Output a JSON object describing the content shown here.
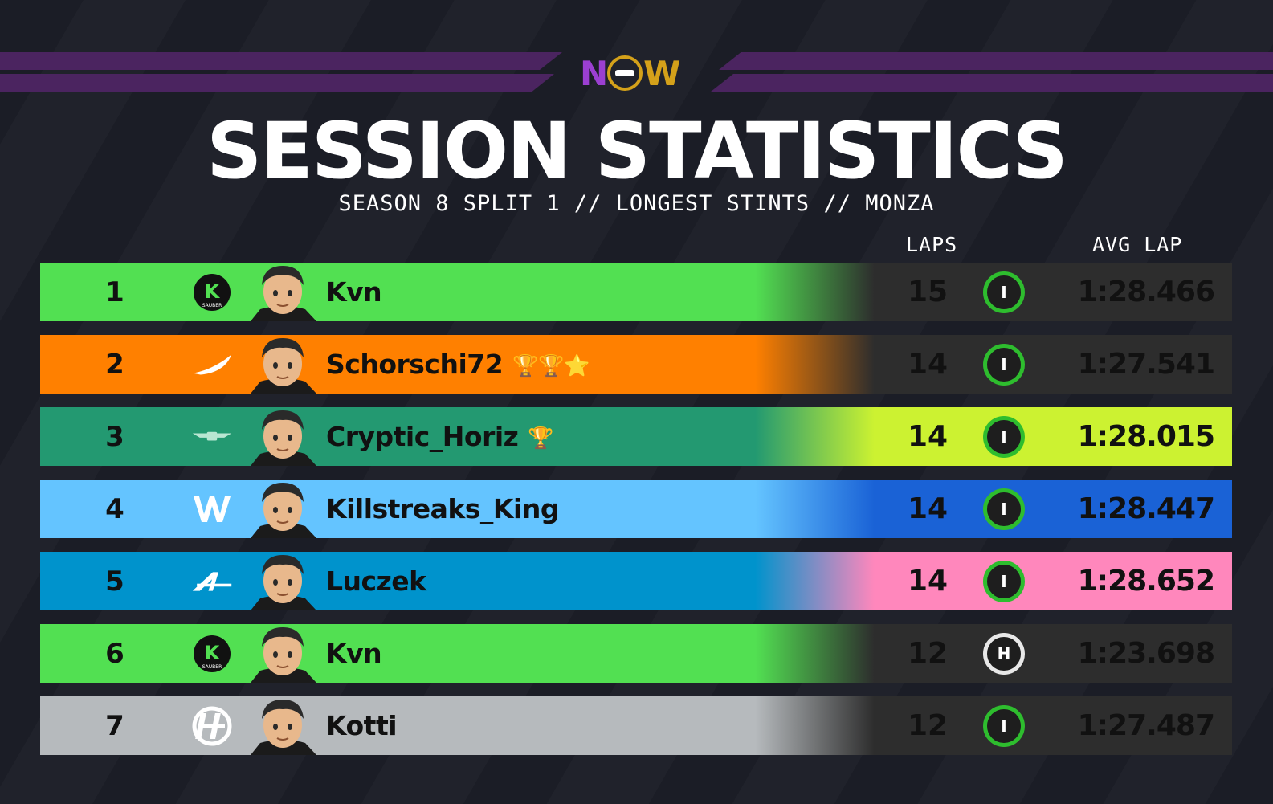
{
  "brand": {
    "logo_left": "N",
    "logo_right": "W"
  },
  "header": {
    "title": "SESSION STATISTICS",
    "subtitle": "SEASON 8 SPLIT 1 // LONGEST STINTS // MONZA",
    "col_laps": "LAPS",
    "col_avg": "AVG LAP"
  },
  "rows": [
    {
      "pos": "1",
      "team": "sauber",
      "team_color": "#52e052",
      "stat_color": "#2d2d2d",
      "name": "Kvn",
      "laps": "15",
      "tyre": "I",
      "tyre_type": "inter",
      "avg": "1:28.466",
      "trophies": ""
    },
    {
      "pos": "2",
      "team": "mclaren",
      "team_color": "#ff8000",
      "stat_color": "#2d2d2d",
      "name": "Schorschi72",
      "laps": "14",
      "tyre": "I",
      "tyre_type": "inter",
      "avg": "1:27.541",
      "trophies": "🏆🏆⭐"
    },
    {
      "pos": "3",
      "team": "aston-martin",
      "team_color": "#239971",
      "stat_color": "#ccf231",
      "name": "Cryptic_Horiz",
      "laps": "14",
      "tyre": "I",
      "tyre_type": "inter",
      "avg": "1:28.015",
      "trophies": "🏆"
    },
    {
      "pos": "4",
      "team": "williams",
      "team_color": "#64c4ff",
      "stat_color": "#1a62d6",
      "name": "Killstreaks_King",
      "laps": "14",
      "tyre": "I",
      "tyre_type": "inter",
      "avg": "1:28.447",
      "trophies": ""
    },
    {
      "pos": "5",
      "team": "alpine",
      "team_color": "#0093cc",
      "stat_color": "#ff87bc",
      "name": "Luczek",
      "laps": "14",
      "tyre": "I",
      "tyre_type": "inter",
      "avg": "1:28.652",
      "trophies": ""
    },
    {
      "pos": "6",
      "team": "sauber",
      "team_color": "#52e052",
      "stat_color": "#2d2d2d",
      "name": "Kvn",
      "laps": "12",
      "tyre": "H",
      "tyre_type": "hard",
      "avg": "1:23.698",
      "trophies": ""
    },
    {
      "pos": "7",
      "team": "haas",
      "team_color": "#b6babd",
      "stat_color": "#2d2d2d",
      "name": "Kotti",
      "laps": "12",
      "tyre": "I",
      "tyre_type": "inter",
      "avg": "1:27.487",
      "trophies": ""
    }
  ]
}
